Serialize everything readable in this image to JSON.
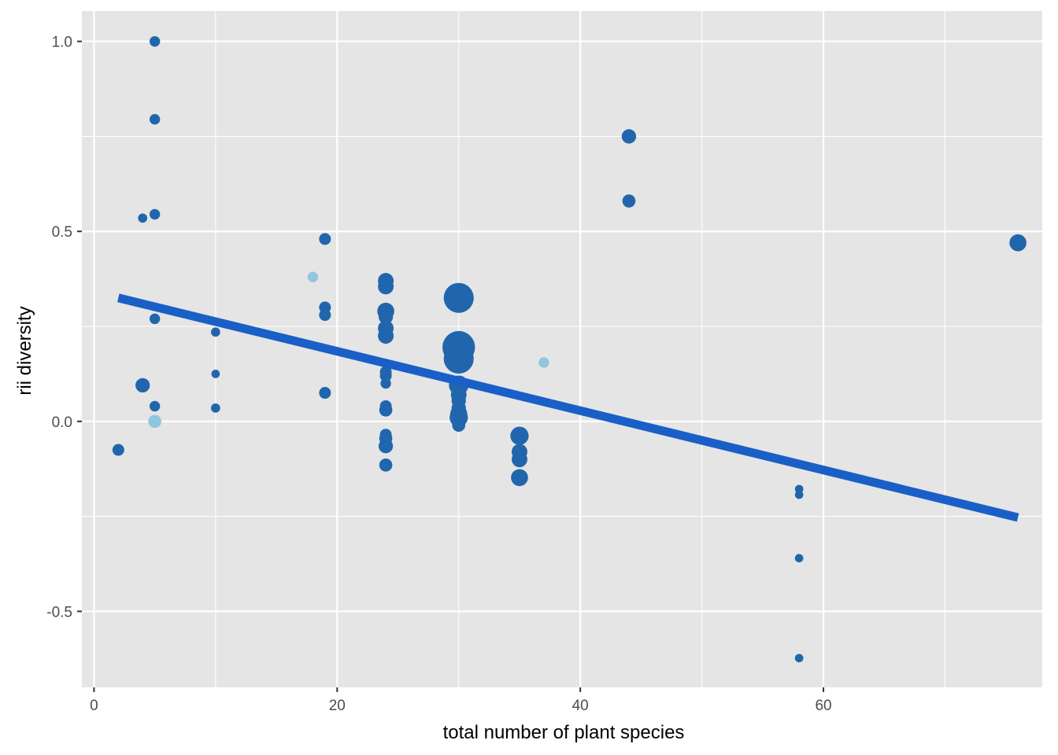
{
  "chart_data": {
    "type": "scatter",
    "xlabel": "total number of plant species",
    "ylabel": "rii diversity",
    "xlim": [
      -1,
      78
    ],
    "ylim": [
      -0.7,
      1.08
    ],
    "x_ticks": [
      0,
      20,
      40,
      60
    ],
    "x_minor_ticks": [
      10,
      30,
      50,
      70
    ],
    "y_ticks": [
      -0.5,
      0.0,
      0.5,
      1.0
    ],
    "y_tick_labels": [
      "-0.5",
      "0.0",
      "0.5",
      "1.0"
    ],
    "y_minor_ticks": [
      -0.25,
      0.25,
      0.75
    ],
    "grid": true,
    "colors": {
      "panel": "#e5e5e5",
      "grid": "#ffffff",
      "point": "#2166ac",
      "point_light": "#92c5de",
      "trend": "#1a5fc8"
    },
    "trend_line": {
      "x": [
        2,
        76
      ],
      "y": [
        0.325,
        -0.253
      ]
    },
    "points": [
      {
        "x": 2,
        "y": -0.075,
        "size": 2,
        "shade": "dark"
      },
      {
        "x": 4,
        "y": 0.535,
        "size": 1,
        "shade": "dark"
      },
      {
        "x": 4,
        "y": 0.095,
        "size": 3,
        "shade": "dark"
      },
      {
        "x": 5,
        "y": 1.0,
        "size": 1.5,
        "shade": "dark"
      },
      {
        "x": 5,
        "y": 0.795,
        "size": 1.5,
        "shade": "dark"
      },
      {
        "x": 5,
        "y": 0.545,
        "size": 1.5,
        "shade": "dark"
      },
      {
        "x": 5,
        "y": 0.27,
        "size": 1.5,
        "shade": "dark"
      },
      {
        "x": 5,
        "y": 0.04,
        "size": 1.5,
        "shade": "dark"
      },
      {
        "x": 5,
        "y": 0.0,
        "size": 2.5,
        "shade": "light"
      },
      {
        "x": 10,
        "y": 0.235,
        "size": 1,
        "shade": "dark"
      },
      {
        "x": 10,
        "y": 0.125,
        "size": 0.7,
        "shade": "dark"
      },
      {
        "x": 10,
        "y": 0.035,
        "size": 1,
        "shade": "dark"
      },
      {
        "x": 18,
        "y": 0.38,
        "size": 1.5,
        "shade": "light"
      },
      {
        "x": 19,
        "y": 0.48,
        "size": 2,
        "shade": "dark"
      },
      {
        "x": 19,
        "y": 0.3,
        "size": 2,
        "shade": "dark"
      },
      {
        "x": 19,
        "y": 0.28,
        "size": 2,
        "shade": "dark"
      },
      {
        "x": 19,
        "y": 0.075,
        "size": 2,
        "shade": "dark"
      },
      {
        "x": 24,
        "y": 0.37,
        "size": 3.5,
        "shade": "dark"
      },
      {
        "x": 24,
        "y": 0.355,
        "size": 3.5,
        "shade": "dark"
      },
      {
        "x": 24,
        "y": 0.29,
        "size": 4,
        "shade": "dark"
      },
      {
        "x": 24,
        "y": 0.275,
        "size": 3,
        "shade": "dark"
      },
      {
        "x": 24,
        "y": 0.245,
        "size": 3.5,
        "shade": "dark"
      },
      {
        "x": 24,
        "y": 0.225,
        "size": 3.5,
        "shade": "dark"
      },
      {
        "x": 24,
        "y": 0.13,
        "size": 2,
        "shade": "dark"
      },
      {
        "x": 24,
        "y": 0.12,
        "size": 2,
        "shade": "dark"
      },
      {
        "x": 24,
        "y": 0.1,
        "size": 1.5,
        "shade": "dark"
      },
      {
        "x": 24,
        "y": 0.04,
        "size": 2,
        "shade": "dark"
      },
      {
        "x": 24,
        "y": 0.03,
        "size": 2.5,
        "shade": "dark"
      },
      {
        "x": 24,
        "y": -0.035,
        "size": 2,
        "shade": "dark"
      },
      {
        "x": 24,
        "y": -0.045,
        "size": 2.5,
        "shade": "dark"
      },
      {
        "x": 24,
        "y": -0.065,
        "size": 3,
        "shade": "dark"
      },
      {
        "x": 24,
        "y": -0.115,
        "size": 2.5,
        "shade": "dark"
      },
      {
        "x": 30,
        "y": 0.325,
        "size": 9,
        "shade": "dark"
      },
      {
        "x": 30,
        "y": 0.195,
        "size": 10,
        "shade": "dark"
      },
      {
        "x": 30,
        "y": 0.165,
        "size": 9,
        "shade": "dark"
      },
      {
        "x": 30,
        "y": 0.095,
        "size": 5,
        "shade": "dark"
      },
      {
        "x": 30,
        "y": 0.07,
        "size": 3.5,
        "shade": "dark"
      },
      {
        "x": 30,
        "y": 0.055,
        "size": 3,
        "shade": "dark"
      },
      {
        "x": 30,
        "y": 0.035,
        "size": 3,
        "shade": "dark"
      },
      {
        "x": 30,
        "y": 0.02,
        "size": 4,
        "shade": "dark"
      },
      {
        "x": 30,
        "y": 0.01,
        "size": 4.5,
        "shade": "dark"
      },
      {
        "x": 30,
        "y": -0.01,
        "size": 2.5,
        "shade": "dark"
      },
      {
        "x": 35,
        "y": -0.038,
        "size": 4.5,
        "shade": "dark"
      },
      {
        "x": 35,
        "y": -0.08,
        "size": 3.5,
        "shade": "dark"
      },
      {
        "x": 35,
        "y": -0.1,
        "size": 3.5,
        "shade": "dark"
      },
      {
        "x": 35,
        "y": -0.148,
        "size": 4,
        "shade": "dark"
      },
      {
        "x": 37,
        "y": 0.155,
        "size": 1.5,
        "shade": "light"
      },
      {
        "x": 44,
        "y": 0.75,
        "size": 3,
        "shade": "dark"
      },
      {
        "x": 44,
        "y": 0.58,
        "size": 2.5,
        "shade": "dark"
      },
      {
        "x": 58,
        "y": -0.178,
        "size": 0.7,
        "shade": "dark"
      },
      {
        "x": 58,
        "y": -0.193,
        "size": 0.7,
        "shade": "dark"
      },
      {
        "x": 58,
        "y": -0.36,
        "size": 0.7,
        "shade": "dark"
      },
      {
        "x": 58,
        "y": -0.623,
        "size": 0.7,
        "shade": "dark"
      },
      {
        "x": 76,
        "y": 0.47,
        "size": 4,
        "shade": "dark"
      }
    ]
  }
}
